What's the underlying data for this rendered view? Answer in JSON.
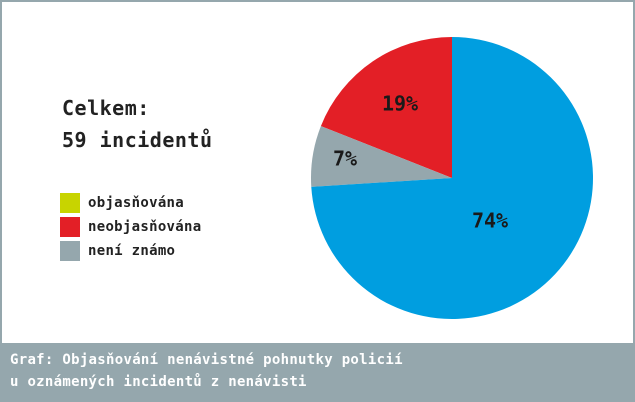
{
  "total": {
    "line1": "Celkem:",
    "line2": "59 incidentů"
  },
  "caption": {
    "line1": "Graf: Objasňování nenávistné pohnutky policií",
    "line2": "u oznámených incidentů z nenávisti"
  },
  "chart_data": {
    "type": "pie",
    "title": "",
    "slices": [
      {
        "name": "objasňována",
        "value": 0,
        "color": "#c8d400",
        "label": ""
      },
      {
        "name": "neobjasňována",
        "value": 19,
        "color": "#e31f26",
        "label": "19%"
      },
      {
        "name": "není známo",
        "value": 7,
        "color": "#95a7ad",
        "label": "7%"
      },
      {
        "name": "",
        "value": 74,
        "color": "#009ee0",
        "label": "74%"
      }
    ],
    "legend": {
      "placement": "left",
      "items": [
        {
          "label": "objasňována",
          "color": "#c8d400"
        },
        {
          "label": "neobjasňována",
          "color": "#e31f26"
        },
        {
          "label": "není známo",
          "color": "#95a7ad"
        }
      ]
    },
    "start": "top",
    "direction": "counterclockwise"
  }
}
